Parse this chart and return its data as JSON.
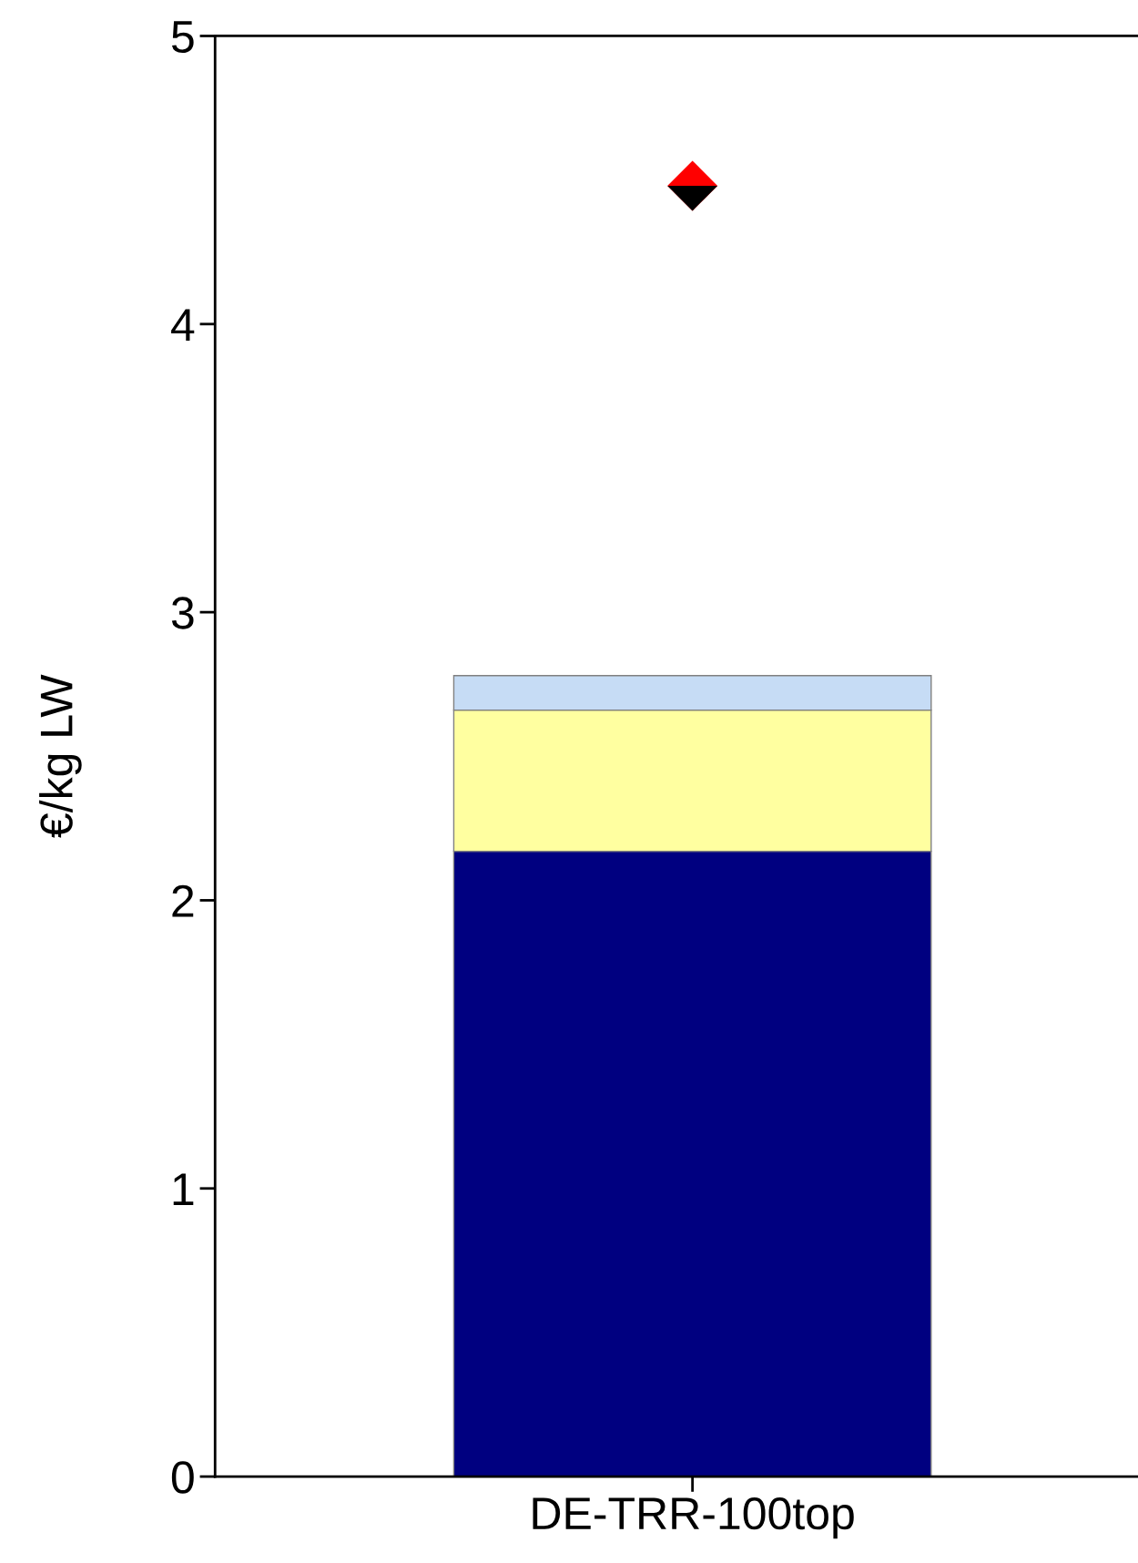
{
  "chart_data": {
    "type": "bar",
    "stacked": true,
    "ylabel": "€/kg LW",
    "categories": [
      "DE-TRR-100top"
    ],
    "series": [
      {
        "color": "#000080",
        "values": [
          2.17
        ]
      },
      {
        "color": "#ffffa0",
        "values": [
          0.49
        ]
      },
      {
        "color": "#c6dcf5",
        "values": [
          0.12
        ]
      },
      {
        "type": "scatter",
        "marker": "diamond",
        "color": "#ff0000",
        "x": [
          "DE-TRR-100top"
        ],
        "values": [
          4.48
        ]
      },
      {
        "type": "scatter",
        "marker": "diamond",
        "color": "#000000",
        "x": [
          "DE-TRR-100top"
        ],
        "values": [
          4.48
        ]
      }
    ],
    "ylim": [
      0,
      5
    ],
    "yticks": [
      0,
      1,
      2,
      3,
      4,
      5
    ],
    "grid": false
  }
}
